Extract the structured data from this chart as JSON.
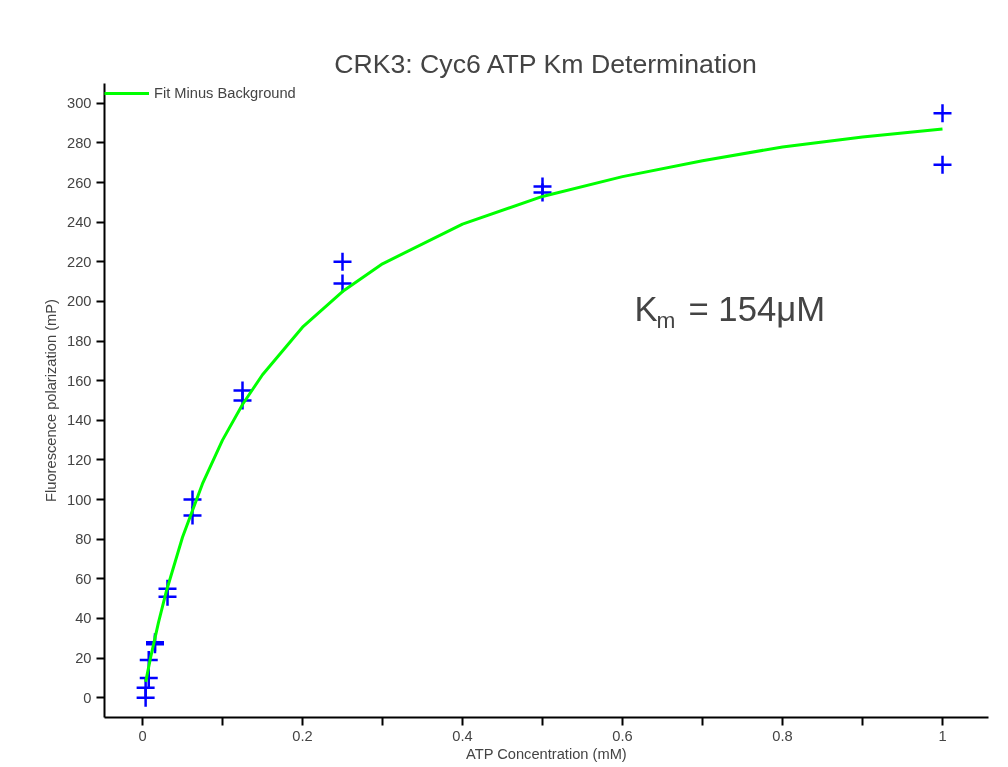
{
  "chart_data": {
    "type": "scatter",
    "title": "CRK3: Cyc6 ATP Km Determination",
    "xlabel": "ATP Concentration (mM)",
    "ylabel": "Fluorescence polarization (mP)",
    "annotations": [
      "K$_{m}$ = 154μM"
    ],
    "series": [
      {
        "color": "#0000ff",
        "marker": "cross",
        "x": [
          0.0039,
          0.0039,
          0.0078,
          0.0078,
          0.0156,
          0.0156,
          0.03125,
          0.03125,
          0.0625,
          0.0625,
          0.125,
          0.125,
          0.25,
          0.25,
          0.5,
          0.5,
          1,
          1
        ],
        "values": [
          0,
          5,
          10,
          19,
          27,
          28,
          55,
          51,
          100,
          92,
          155,
          150,
          220,
          209,
          258,
          255,
          295,
          269
        ]
      },
      {
        "type": "line",
        "name": "Fit Minus Background",
        "color": "#00ff00",
        "marker": "none",
        "x": [
          0.004,
          0.01,
          0.02,
          0.03,
          0.05,
          0.075,
          0.1,
          0.125,
          0.15,
          0.2,
          0.25,
          0.3,
          0.4,
          0.5,
          0.6,
          0.7,
          0.8,
          0.9,
          1.0
        ],
        "values": [
          8,
          20,
          38,
          54,
          81,
          108,
          130,
          148,
          163,
          187,
          205,
          219,
          239,
          253,
          263,
          271,
          278,
          283,
          287
        ]
      }
    ],
    "xlim": [
      -0.0475,
      1.0575
    ],
    "ylim": [
      -10,
      310
    ],
    "xticks": [
      0,
      {
        "value": 0.1,
        "label": null
      },
      0.2,
      {
        "value": 0.3,
        "label": null
      },
      0.4,
      {
        "value": 0.5,
        "label": null
      },
      0.6,
      {
        "value": 0.7,
        "label": null
      },
      0.8,
      {
        "value": 0.9,
        "label": null
      },
      1
    ],
    "yticks": [
      0,
      20,
      40,
      60,
      80,
      100,
      120,
      140,
      160,
      180,
      200,
      220,
      240,
      260,
      280,
      300
    ],
    "grid": false,
    "legend": "top left"
  }
}
